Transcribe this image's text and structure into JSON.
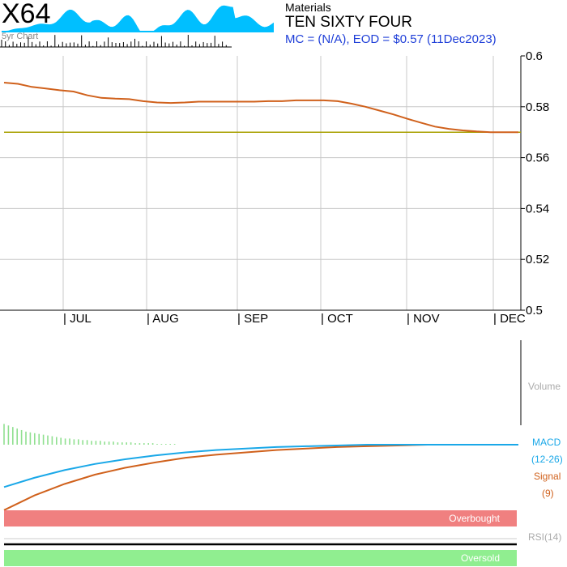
{
  "header": {
    "ticker": "X64",
    "spark_label": "5yr Chart",
    "sector": "Materials",
    "company": "TEN SIXTY FOUR",
    "mc_line": "MC = (N/A), EOD = $0.57 (11Dec2023)"
  },
  "colors": {
    "price_line": "#d0611c",
    "flat_line": "#a8a000",
    "macd": "#1aa8e8",
    "signal": "#d0611c",
    "histogram": "#90e090",
    "overbought": "#f08080",
    "oversold": "#90ee90",
    "sparkline": "#00bfff",
    "grid": "#c8c8c8"
  },
  "chart_data": [
    {
      "type": "line",
      "title": "TEN SIXTY FOUR",
      "x_ticks": [
        "| JUL",
        "| AUG",
        "| SEP",
        "| OCT",
        "| NOV",
        "| DEC"
      ],
      "y_ticks": [
        "0.6",
        "0.58",
        "0.56",
        "0.54",
        "0.52",
        "0.5"
      ],
      "ylim": [
        0.5,
        0.6
      ],
      "grid": true,
      "series": [
        {
          "values": [
            0.5895,
            0.589,
            0.5878,
            0.5872,
            0.5865,
            0.586,
            0.5845,
            0.5835,
            0.5832,
            0.583,
            0.5822,
            0.5817,
            0.5815,
            0.5817,
            0.582,
            0.582,
            0.582,
            0.582,
            0.582,
            0.5822,
            0.5822,
            0.5825,
            0.5825,
            0.5825,
            0.5822,
            0.5812,
            0.58,
            0.5785,
            0.577,
            0.5753,
            0.5737,
            0.5722,
            0.5713,
            0.5707,
            0.5703,
            0.57,
            0.57,
            0.57
          ]
        },
        {
          "values": [
            0.57,
            0.57
          ]
        }
      ]
    },
    {
      "type": "line",
      "title": "",
      "labels": [
        "Volume"
      ]
    },
    {
      "type": "line",
      "title": "",
      "legend": [
        "MACD",
        "(12-26)",
        "Signal",
        "(9)"
      ],
      "series": [
        {
          "name": "MACD",
          "values": [
            -0.0055,
            -0.0043,
            -0.0033,
            -0.0025,
            -0.0019,
            -0.0014,
            -0.001,
            -0.0007,
            -0.0005,
            -0.0003,
            -0.0002,
            -0.0001,
            0,
            0,
            0,
            0,
            0,
            0
          ]
        },
        {
          "name": "Signal",
          "values": [
            -0.0085,
            -0.0066,
            -0.0051,
            -0.0039,
            -0.003,
            -0.0023,
            -0.0017,
            -0.0013,
            -0.001,
            -0.0007,
            -0.0005,
            -0.0003,
            -0.0002,
            -0.0001,
            0,
            0,
            0,
            0
          ]
        },
        {
          "name": "Histogram",
          "values": [
            0.0027,
            0.0025,
            0.0023,
            0.0021,
            0.0019,
            0.0017,
            0.0016,
            0.0015,
            0.0014,
            0.0013,
            0.0012,
            0.0011,
            0.001,
            0.0009,
            0.0008,
            0.0008,
            0.0007,
            0.0007,
            0.0006,
            0.0006,
            0.0005,
            0.0005,
            0.0005,
            0.0004,
            0.0004,
            0.0004,
            0.0003,
            0.0003,
            0.0003,
            0.0003,
            0.0002,
            0.0002,
            0.0002,
            0.0002,
            0.0002,
            0.0001,
            0.0001,
            0.0001,
            0.0001,
            0.0001
          ]
        }
      ]
    },
    {
      "type": "line",
      "title": "",
      "labels": [
        "Overbought",
        "RSI(14)",
        "Oversold"
      ]
    }
  ]
}
